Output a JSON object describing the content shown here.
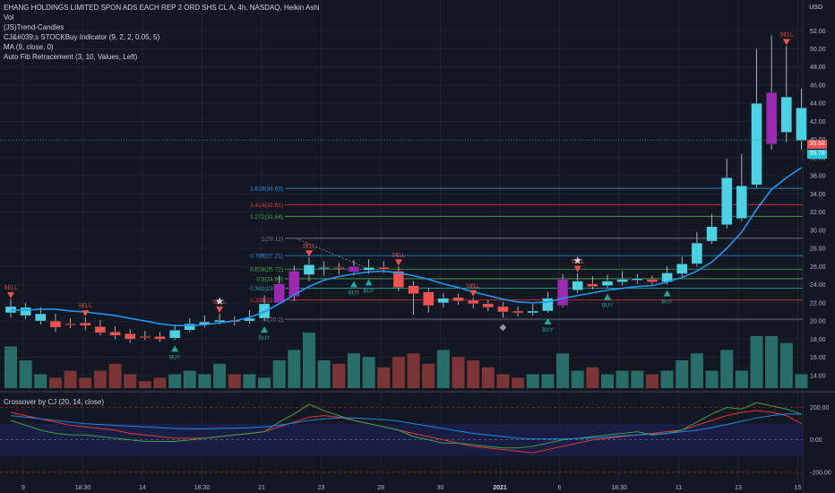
{
  "legend": {
    "title": "EHANG HOLDINGS LIMITED SPON ADS EACH REP 2 ORD SHS CL A, 4h, NASDAQ, Heikin Ashi",
    "lines": [
      "Vol",
      "(JS)Trend-Candles",
      "CJ&#039;s STOCKBuy Indicator (9, 2, 2, 0.05, 5)",
      "MA (9, close, 0)",
      "Auto Fib Retracement (3, 10, Values, Left)"
    ]
  },
  "oscillator": {
    "title": "Crossover by CJ (20, 14, close)"
  },
  "currency": "USD",
  "price_tags": {
    "upper": "39.93",
    "lower": "39.78"
  },
  "price_axis": [
    "52.00",
    "50.00",
    "48.00",
    "46.00",
    "44.00",
    "42.00",
    "40.00",
    "38.00",
    "36.00",
    "34.00",
    "32.00",
    "30.00",
    "28.00",
    "26.00",
    "24.00",
    "22.00",
    "20.00",
    "18.00",
    "16.00",
    "14.00"
  ],
  "osc_axis": [
    "200.00",
    "0.00",
    "-200.00"
  ],
  "time_axis": [
    "9",
    "18:30",
    "14",
    "18:30",
    "21",
    "23",
    "28",
    "30",
    "2021",
    "6",
    "18:30",
    "11",
    "13",
    "15"
  ],
  "signals": {
    "sell": "SELL",
    "buy": "BUY"
  },
  "fib_levels": [
    {
      "label": "1.618(34.63)",
      "price": 34.63,
      "color": "#2196f3"
    },
    {
      "label": "1.414(32.81)",
      "price": 32.81,
      "color": "#f23645"
    },
    {
      "label": "1.272(31.54)",
      "price": 31.54,
      "color": "#4caf50"
    },
    {
      "label": "1(29.12)",
      "price": 29.12,
      "color": "#787b86"
    },
    {
      "label": "0.786(27.21)",
      "price": 27.21,
      "color": "#2196f3"
    },
    {
      "label": "0.618(25.72)",
      "price": 25.72,
      "color": "#4caf50"
    },
    {
      "label": "0.5(24.66)",
      "price": 24.66,
      "color": "#4caf50"
    },
    {
      "label": "0.382(23.61)",
      "price": 23.61,
      "color": "#26a69a"
    },
    {
      "label": "0.236(22.31)",
      "price": 22.31,
      "color": "#f23645"
    },
    {
      "label": "0(20.2)",
      "price": 20.2,
      "color": "#787b86"
    }
  ],
  "chart_data": {
    "type": "candlestick",
    "candles": [
      {
        "o": 21.6,
        "c": 20.9,
        "h": 22.4,
        "l": 20.4
      },
      {
        "o": 21.5,
        "c": 20.6,
        "h": 22.0,
        "l": 20.2
      },
      {
        "o": 20.8,
        "c": 20.0,
        "h": 21.5,
        "l": 19.6
      },
      {
        "o": 20.0,
        "c": 19.3,
        "h": 20.8,
        "l": 18.8
      },
      {
        "o": 19.6,
        "c": 19.7,
        "h": 20.3,
        "l": 19.2
      },
      {
        "o": 19.8,
        "c": 19.5,
        "h": 20.4,
        "l": 19.0
      },
      {
        "o": 19.4,
        "c": 18.7,
        "h": 20.1,
        "l": 18.4
      },
      {
        "o": 18.8,
        "c": 18.4,
        "h": 19.4,
        "l": 18.0
      },
      {
        "o": 18.6,
        "c": 18.0,
        "h": 19.1,
        "l": 17.6
      },
      {
        "o": 18.3,
        "c": 18.3,
        "h": 18.9,
        "l": 17.9
      },
      {
        "o": 18.3,
        "c": 18.0,
        "h": 18.8,
        "l": 17.7
      },
      {
        "o": 18.1,
        "c": 19.0,
        "h": 19.6,
        "l": 17.9
      },
      {
        "o": 19.0,
        "c": 19.7,
        "h": 20.3,
        "l": 18.8
      },
      {
        "o": 19.6,
        "c": 19.9,
        "h": 20.6,
        "l": 19.3
      },
      {
        "o": 19.9,
        "c": 20.1,
        "h": 20.8,
        "l": 19.6
      },
      {
        "o": 20.1,
        "c": 19.9,
        "h": 20.5,
        "l": 19.5
      },
      {
        "o": 20.0,
        "c": 20.3,
        "h": 21.2,
        "l": 19.7
      },
      {
        "o": 20.3,
        "c": 21.9,
        "h": 22.8,
        "l": 20.0
      },
      {
        "o": 22.0,
        "c": 24.1,
        "h": 25.0,
        "l": 21.8
      },
      {
        "o": 22.7,
        "c": 25.5,
        "h": 26.1,
        "l": 22.2
      },
      {
        "o": 25.1,
        "c": 26.2,
        "h": 27.0,
        "l": 24.4
      },
      {
        "o": 25.8,
        "c": 25.9,
        "h": 26.6,
        "l": 25.0
      },
      {
        "o": 25.9,
        "c": 25.8,
        "h": 26.4,
        "l": 25.1
      },
      {
        "o": 26.0,
        "c": 25.4,
        "h": 26.7,
        "l": 25.0
      },
      {
        "o": 25.6,
        "c": 25.9,
        "h": 26.8,
        "l": 25.2
      },
      {
        "o": 25.9,
        "c": 25.7,
        "h": 26.6,
        "l": 25.3
      },
      {
        "o": 25.5,
        "c": 23.7,
        "h": 26.0,
        "l": 23.3
      },
      {
        "o": 23.9,
        "c": 23.0,
        "h": 24.4,
        "l": 20.7
      },
      {
        "o": 23.2,
        "c": 21.7,
        "h": 23.6,
        "l": 20.9
      },
      {
        "o": 22.0,
        "c": 22.5,
        "h": 23.1,
        "l": 21.5
      },
      {
        "o": 22.6,
        "c": 22.2,
        "h": 23.0,
        "l": 21.8
      },
      {
        "o": 22.3,
        "c": 21.9,
        "h": 22.6,
        "l": 21.4
      },
      {
        "o": 21.9,
        "c": 21.5,
        "h": 22.3,
        "l": 21.1
      },
      {
        "o": 21.6,
        "c": 21.0,
        "h": 22.1,
        "l": 20.4
      },
      {
        "o": 21.1,
        "c": 20.9,
        "h": 21.6,
        "l": 20.5
      },
      {
        "o": 20.9,
        "c": 21.1,
        "h": 21.9,
        "l": 20.6
      },
      {
        "o": 21.1,
        "c": 22.5,
        "h": 23.2,
        "l": 20.9
      },
      {
        "o": 21.7,
        "c": 24.6,
        "h": 25.2,
        "l": 21.5
      },
      {
        "o": 23.4,
        "c": 24.4,
        "h": 25.3,
        "l": 23.1
      },
      {
        "o": 24.1,
        "c": 23.8,
        "h": 24.9,
        "l": 23.5
      },
      {
        "o": 23.9,
        "c": 24.4,
        "h": 25.1,
        "l": 23.6
      },
      {
        "o": 24.3,
        "c": 24.6,
        "h": 25.5,
        "l": 23.9
      },
      {
        "o": 24.5,
        "c": 24.7,
        "h": 25.2,
        "l": 24.1
      },
      {
        "o": 24.6,
        "c": 24.3,
        "h": 25.0,
        "l": 24.0
      },
      {
        "o": 24.3,
        "c": 25.3,
        "h": 26.0,
        "l": 24.0
      },
      {
        "o": 25.2,
        "c": 26.3,
        "h": 27.1,
        "l": 24.9
      },
      {
        "o": 26.3,
        "c": 28.6,
        "h": 29.8,
        "l": 26.0
      },
      {
        "o": 28.8,
        "c": 30.4,
        "h": 31.8,
        "l": 28.5
      },
      {
        "o": 30.6,
        "c": 35.8,
        "h": 37.9,
        "l": 30.2
      },
      {
        "o": 31.3,
        "c": 34.9,
        "h": 38.4,
        "l": 31.0
      },
      {
        "o": 35.0,
        "c": 44.0,
        "h": 50.0,
        "l": 34.7
      },
      {
        "o": 39.5,
        "c": 45.2,
        "h": 51.5,
        "l": 38.9
      },
      {
        "o": 40.8,
        "c": 44.7,
        "h": 50.3,
        "l": 39.7
      },
      {
        "o": 43.5,
        "c": 39.9,
        "h": 45.6,
        "l": 38.9
      }
    ],
    "trend_colors": [
      "teal",
      "teal",
      "teal",
      "red",
      "red",
      "red",
      "red",
      "red",
      "red",
      "red",
      "red",
      "teal",
      "teal",
      "teal",
      "teal",
      "red",
      "teal",
      "teal",
      "purple",
      "purple",
      "teal",
      "teal",
      "red",
      "purple",
      "teal",
      "red",
      "red",
      "red",
      "red",
      "teal",
      "red",
      "red",
      "red",
      "red",
      "red",
      "teal",
      "teal",
      "purple",
      "teal",
      "red",
      "teal",
      "teal",
      "teal",
      "red",
      "teal",
      "teal",
      "teal",
      "teal",
      "teal",
      "teal",
      "teal",
      "purple",
      "teal",
      "teal"
    ],
    "volume": [
      12,
      8,
      4,
      3,
      5,
      3,
      5,
      7,
      4,
      2,
      3,
      4,
      5,
      4,
      7,
      4,
      4,
      3,
      8,
      11,
      16,
      8,
      7,
      10,
      9,
      6,
      9,
      10,
      7,
      11,
      9,
      8,
      6,
      4,
      3,
      4,
      4,
      10,
      5,
      6,
      4,
      5,
      5,
      4,
      5,
      8,
      10,
      5,
      11,
      5,
      15,
      15,
      13,
      4
    ],
    "ma9": [
      21.2,
      21.2,
      21.3,
      21.3,
      21.1,
      21.0,
      20.8,
      20.6,
      20.3,
      20.0,
      19.7,
      19.5,
      19.5,
      19.6,
      19.8,
      20.0,
      20.4,
      21.0,
      21.9,
      22.9,
      23.8,
      24.5,
      24.9,
      25.2,
      25.4,
      25.5,
      25.3,
      25.0,
      24.6,
      24.1,
      23.7,
      23.2,
      22.8,
      22.4,
      22.1,
      22.0,
      22.1,
      22.5,
      22.8,
      23.1,
      23.4,
      23.6,
      23.8,
      23.9,
      24.3,
      24.8,
      25.5,
      26.5,
      28.0,
      29.8,
      32.3,
      34.5,
      35.8,
      36.9
    ],
    "osc_green": [
      120,
      90,
      60,
      40,
      30,
      30,
      20,
      10,
      0,
      -10,
      -10,
      -10,
      0,
      10,
      20,
      30,
      40,
      50,
      110,
      160,
      220,
      180,
      150,
      120,
      100,
      80,
      60,
      20,
      0,
      -20,
      -20,
      -30,
      -40,
      -50,
      -50,
      -40,
      -20,
      0,
      10,
      20,
      30,
      40,
      50,
      30,
      40,
      60,
      110,
      160,
      200,
      190,
      230,
      210,
      190,
      160
    ],
    "osc_red": [
      170,
      150,
      130,
      110,
      90,
      80,
      70,
      60,
      40,
      30,
      20,
      10,
      10,
      10,
      20,
      30,
      40,
      50,
      80,
      110,
      140,
      150,
      140,
      120,
      100,
      80,
      60,
      40,
      20,
      0,
      -20,
      -40,
      -50,
      -60,
      -70,
      -80,
      -60,
      -40,
      -20,
      0,
      10,
      20,
      30,
      40,
      50,
      60,
      90,
      120,
      150,
      170,
      180,
      170,
      150,
      100
    ],
    "osc_blue": [
      150,
      140,
      130,
      120,
      110,
      100,
      95,
      90,
      85,
      80,
      75,
      70,
      68,
      68,
      70,
      72,
      75,
      80,
      90,
      105,
      120,
      130,
      135,
      135,
      130,
      125,
      115,
      100,
      85,
      70,
      55,
      40,
      30,
      20,
      10,
      5,
      5,
      5,
      8,
      12,
      18,
      25,
      30,
      35,
      40,
      50,
      60,
      75,
      95,
      115,
      135,
      150,
      160,
      158
    ],
    "osc_band": [
      100,
      -100
    ],
    "price_range": [
      12.6,
      54.2
    ],
    "osc_range": [
      -245,
      275
    ]
  }
}
